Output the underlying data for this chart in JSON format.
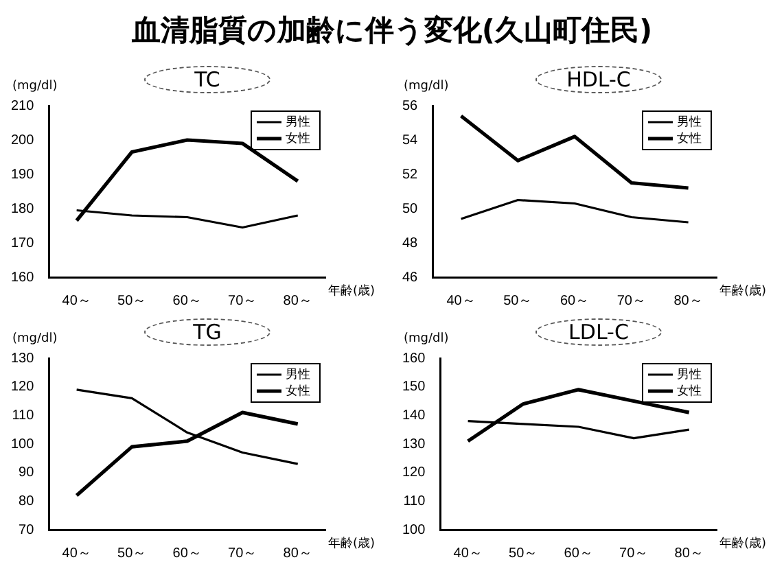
{
  "chart_data": [
    {
      "type": "line",
      "title": "TC",
      "annotations": [
        "血清脂質の加齢に伴う変化(久山町住民)"
      ],
      "ylabel": "(mg/dl)",
      "xlabel": "年齢(歳)",
      "categories": [
        "40～",
        "50～",
        "60～",
        "70～",
        "80～"
      ],
      "series": [
        {
          "name": "男性",
          "color": "#000000",
          "values": [
            179.5,
            178,
            177.5,
            174.5,
            178
          ]
        },
        {
          "name": "女性",
          "color": "#000000",
          "values": [
            176.5,
            196.5,
            200,
            199,
            188
          ]
        }
      ],
      "ylim": [
        160,
        210
      ],
      "yticks": [
        160,
        170,
        180,
        190,
        200,
        210
      ],
      "grid": false,
      "legend": "top right",
      "marker": "none",
      "line_style": "solid"
    },
    {
      "type": "line",
      "title": "HDL-C",
      "ylabel": "(mg/dl)",
      "xlabel": "年齢(歳)",
      "categories": [
        "40～",
        "50～",
        "60～",
        "70～",
        "80～"
      ],
      "series": [
        {
          "name": "男性",
          "color": "#000000",
          "values": [
            49.4,
            50.5,
            50.3,
            49.5,
            49.2
          ]
        },
        {
          "name": "女性",
          "color": "#000000",
          "values": [
            55.4,
            52.8,
            54.2,
            51.5,
            51.2
          ]
        }
      ],
      "ylim": [
        46,
        56
      ],
      "yticks": [
        46,
        48,
        50,
        52,
        54,
        56
      ],
      "grid": false,
      "legend": "top right",
      "marker": "none",
      "line_style": "solid"
    },
    {
      "type": "line",
      "title": "TG",
      "ylabel": "(mg/dl)",
      "xlabel": "年齢(歳)",
      "categories": [
        "40～",
        "50～",
        "60～",
        "70～",
        "80～"
      ],
      "series": [
        {
          "name": "男性",
          "color": "#000000",
          "values": [
            119,
            116,
            104,
            97,
            93
          ]
        },
        {
          "name": "女性",
          "color": "#000000",
          "values": [
            82,
            99,
            101,
            111,
            107
          ]
        }
      ],
      "ylim": [
        70,
        130
      ],
      "yticks": [
        70,
        80,
        90,
        100,
        110,
        120,
        130
      ],
      "grid": false,
      "legend": "top right",
      "marker": "none",
      "line_style": "solid"
    },
    {
      "type": "line",
      "title": "LDL-C",
      "ylabel": "(mg/dl)",
      "xlabel": "年齢(歳)",
      "categories": [
        "40～",
        "50～",
        "60～",
        "70～",
        "80～"
      ],
      "series": [
        {
          "name": "男性",
          "color": "#000000",
          "values": [
            138,
            137,
            136,
            132,
            135
          ]
        },
        {
          "name": "女性",
          "color": "#000000",
          "values": [
            131,
            144,
            149,
            145,
            141
          ]
        }
      ],
      "ylim": [
        100,
        160
      ],
      "yticks": [
        100,
        110,
        120,
        130,
        140,
        150,
        160
      ],
      "grid": false,
      "legend": "top right",
      "marker": "none",
      "line_style": "solid"
    }
  ]
}
